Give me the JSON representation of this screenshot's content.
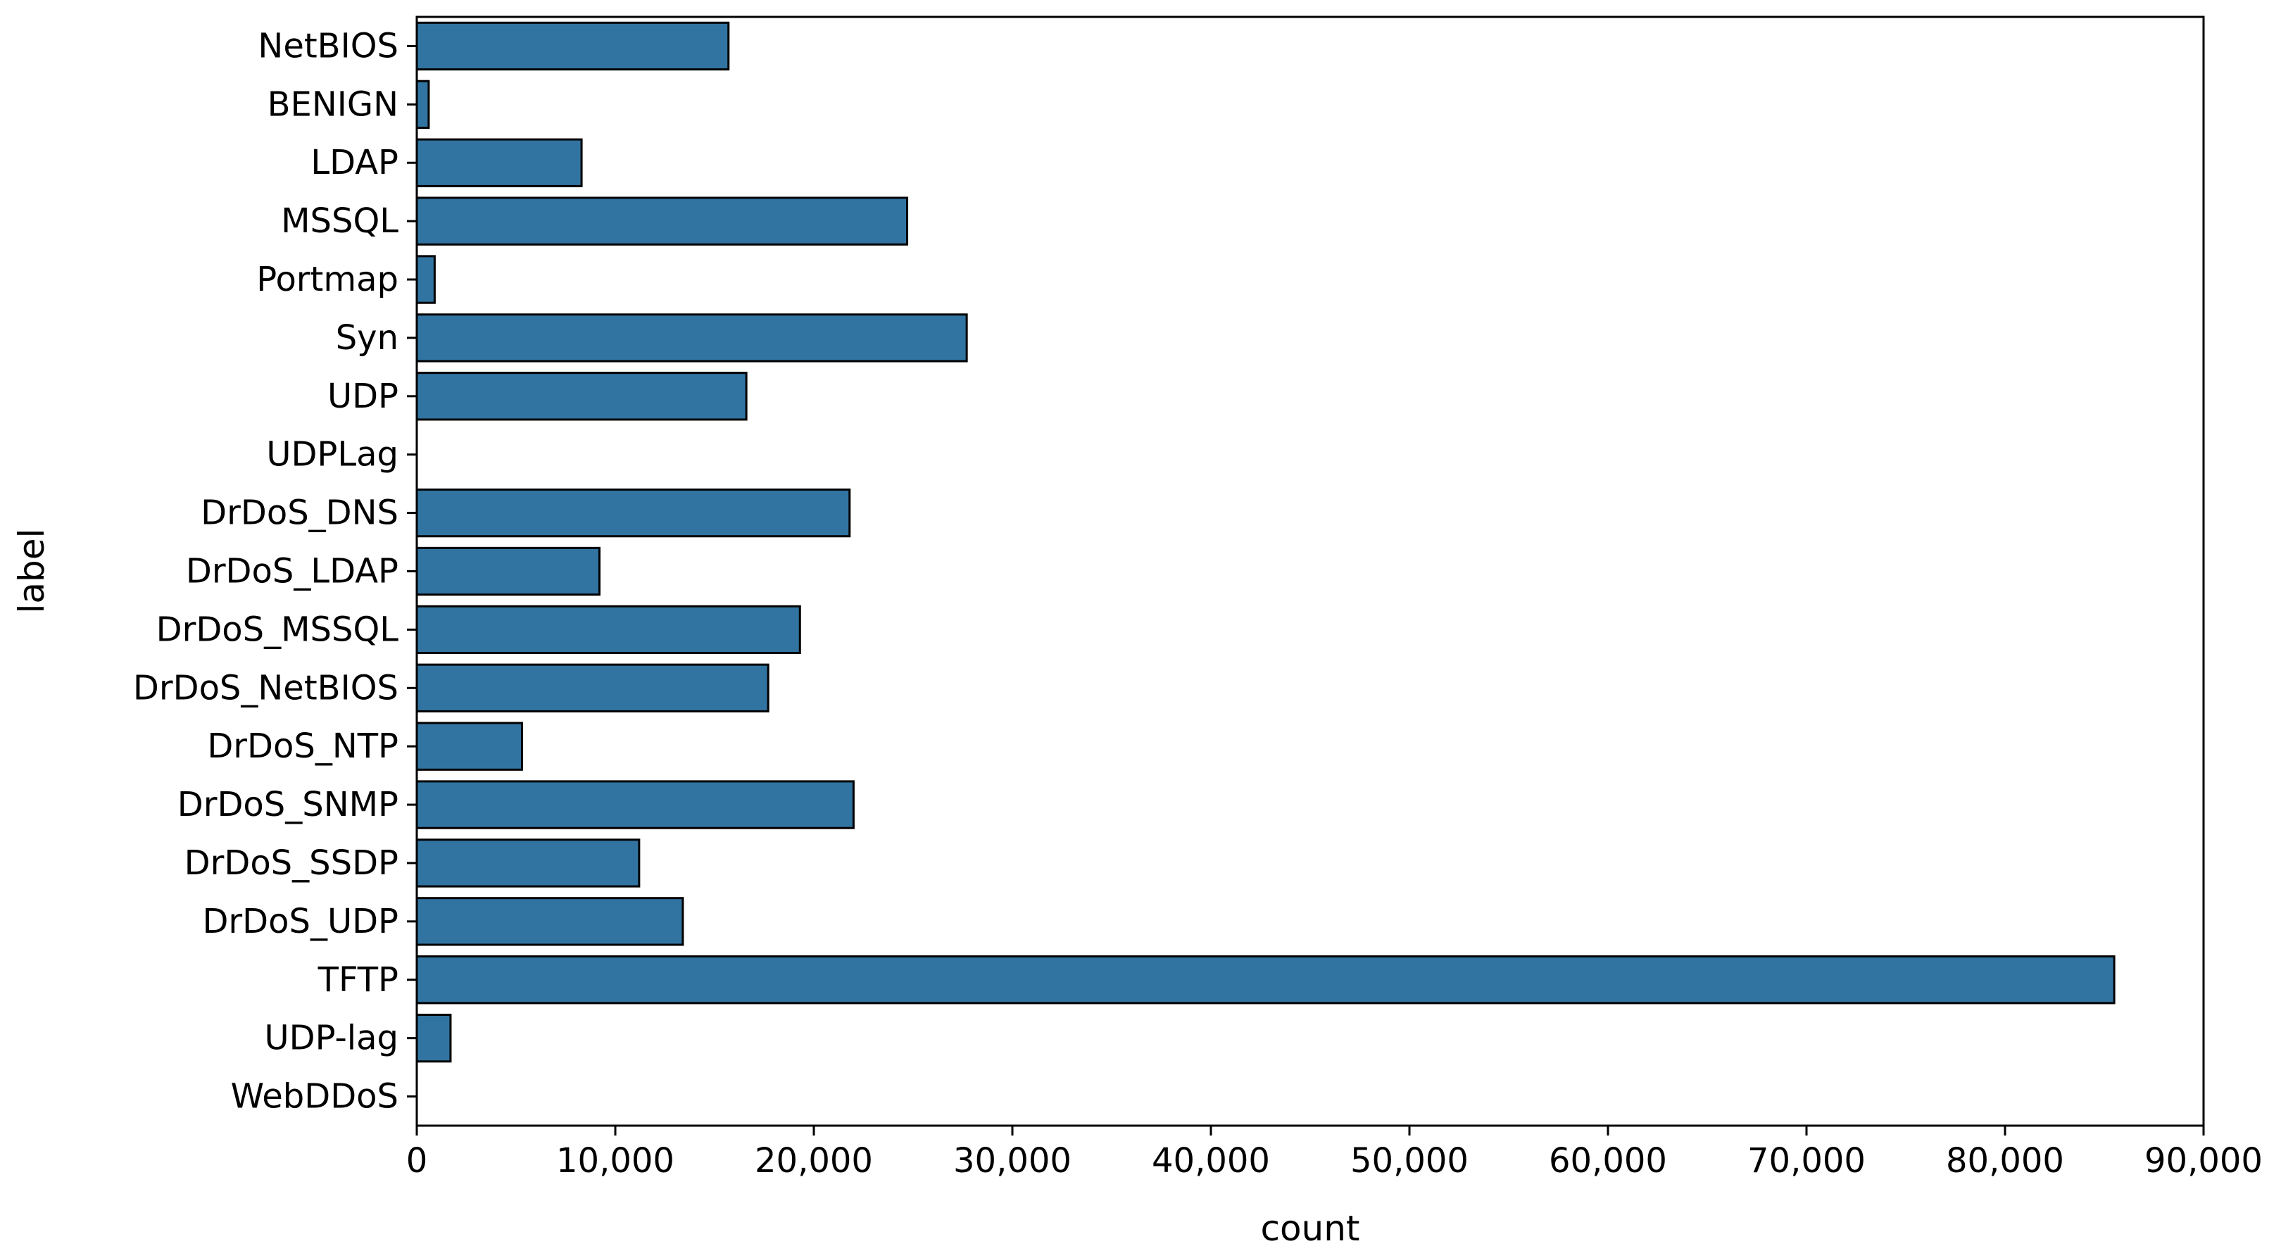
{
  "chart_data": {
    "type": "bar",
    "orientation": "horizontal",
    "title": "",
    "xlabel": "count",
    "ylabel": "label",
    "xlim": [
      0,
      90000
    ],
    "x_ticks": [
      0,
      10000,
      20000,
      30000,
      40000,
      50000,
      60000,
      70000,
      80000,
      90000
    ],
    "x_tick_labels": [
      "0",
      "10,000",
      "20,000",
      "30,000",
      "40,000",
      "50,000",
      "60,000",
      "70,000",
      "80,000",
      "90,000"
    ],
    "grid": false,
    "legend": "none",
    "bar_color": "#3274a1",
    "bar_edge_color": "#000000",
    "categories": [
      "NetBIOS",
      "BENIGN",
      "LDAP",
      "MSSQL",
      "Portmap",
      "Syn",
      "UDP",
      "UDPLag",
      "DrDoS_DNS",
      "DrDoS_LDAP",
      "DrDoS_MSSQL",
      "DrDoS_NetBIOS",
      "DrDoS_NTP",
      "DrDoS_SNMP",
      "DrDoS_SSDP",
      "DrDoS_UDP",
      "TFTP",
      "UDP-lag",
      "WebDDoS"
    ],
    "values": [
      15700,
      600,
      8300,
      24700,
      900,
      27700,
      16600,
      0,
      21800,
      9200,
      19300,
      17700,
      5300,
      22000,
      11200,
      13400,
      85500,
      1700,
      0
    ]
  }
}
